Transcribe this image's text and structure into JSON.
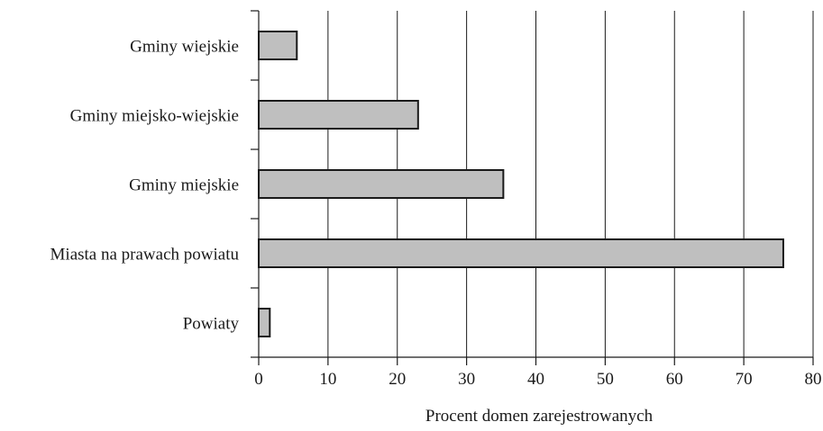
{
  "chart_data": {
    "type": "bar",
    "orientation": "horizontal",
    "title": "",
    "xlabel": "Procent domen zarejestrowanych",
    "ylabel": "",
    "xlim": [
      0,
      80
    ],
    "xticks": [
      0,
      10,
      20,
      30,
      40,
      50,
      60,
      70,
      80
    ],
    "grid": "vertical",
    "legend": "none",
    "categories": [
      "Gminy wiejskie",
      "Gminy miejsko-wiejskie",
      "Gminy miejskie",
      "Miasta na prawach powiatu",
      "Powiaty"
    ],
    "values": [
      5.5,
      23.0,
      35.3,
      75.7,
      1.6
    ],
    "bar_color": "#bfbfbf",
    "bar_edge_color": "#1a1a1a"
  }
}
